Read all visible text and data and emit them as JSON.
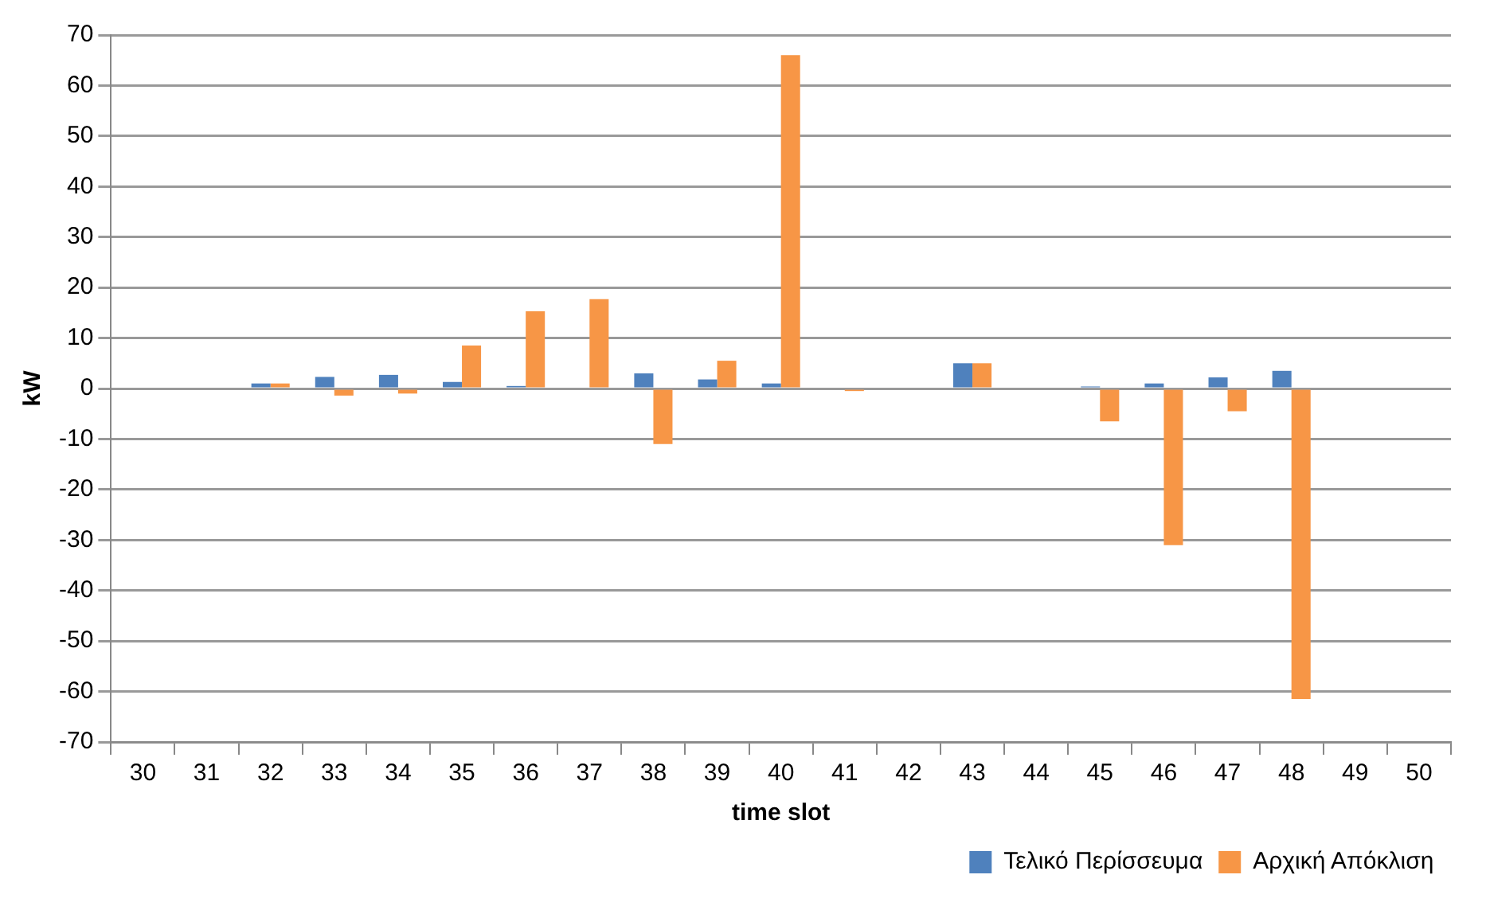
{
  "chart_data": {
    "type": "bar",
    "xlabel": "time slot",
    "ylabel": "kW",
    "categories": [
      "30",
      "31",
      "32",
      "33",
      "34",
      "35",
      "36",
      "37",
      "38",
      "39",
      "40",
      "41",
      "42",
      "43",
      "44",
      "45",
      "46",
      "47",
      "48",
      "49",
      "50"
    ],
    "series": [
      {
        "name": "Τελικό Περίσσευμα",
        "color": "#4f81bd",
        "values": [
          0,
          0,
          1,
          2.3,
          2.7,
          1.3,
          0.5,
          0,
          3,
          1.8,
          1,
          0,
          0,
          5,
          0,
          0.4,
          1,
          2.2,
          3.5,
          0,
          0
        ]
      },
      {
        "name": "Αρχική Απόκλιση",
        "color": "#f79646",
        "values": [
          0,
          0,
          1,
          -1.4,
          -1,
          8.5,
          15.3,
          17.7,
          -11,
          5.5,
          66,
          -0.5,
          0,
          5,
          0,
          -6.5,
          -31,
          -4.5,
          -61.5,
          0,
          0
        ]
      }
    ],
    "ylim": [
      -70,
      70
    ],
    "yticks": [
      -70,
      -60,
      -50,
      -40,
      -30,
      -20,
      -10,
      0,
      10,
      20,
      30,
      40,
      50,
      60,
      70
    ],
    "grid": "y",
    "legend": "bottom"
  }
}
